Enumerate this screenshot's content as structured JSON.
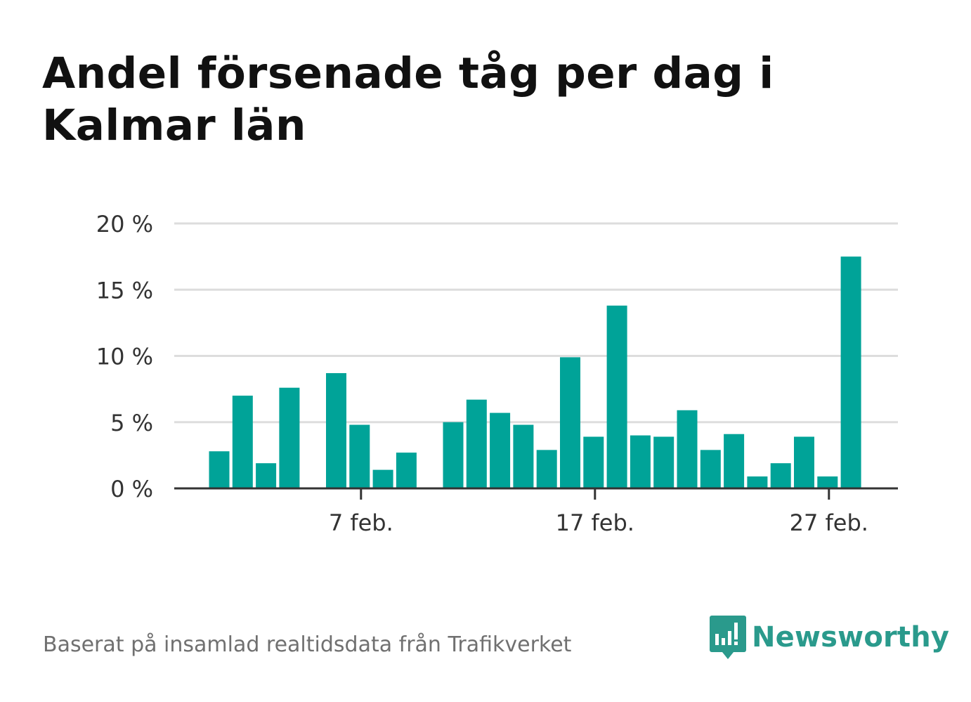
{
  "header": {
    "title": "Andel försenade tåg per dag i Kalmar län"
  },
  "footer": {
    "source": "Baserat på insamlad realtidsdata från Trafikverket",
    "brand": "Newsworthy",
    "brand_icon": "newsworthy-logo-icon"
  },
  "colors": {
    "bar": "#00a398",
    "grid": "#dddddd",
    "axis": "#333333",
    "brand": "#2a9a8c"
  },
  "chart_data": {
    "type": "bar",
    "title": "Andel försenade tåg per dag i Kalmar län",
    "xlabel": "",
    "ylabel": "",
    "ylim": [
      0,
      20
    ],
    "yticks": [
      0,
      5,
      10,
      15,
      20
    ],
    "ytick_labels": [
      "0 %",
      "5 %",
      "10 %",
      "15 %",
      "20 %"
    ],
    "xtick_labels": [
      {
        "day": 7,
        "label": "7 feb."
      },
      {
        "day": 17,
        "label": "17 feb."
      },
      {
        "day": 27,
        "label": "27 feb."
      }
    ],
    "grid": true,
    "days": [
      1,
      2,
      3,
      4,
      5,
      6,
      7,
      8,
      9,
      10,
      11,
      12,
      13,
      14,
      15,
      16,
      17,
      18,
      19,
      20,
      21,
      22,
      23,
      24,
      25,
      26,
      27,
      28
    ],
    "values": [
      2.8,
      7.0,
      1.9,
      7.6,
      null,
      8.7,
      4.8,
      1.4,
      2.7,
      null,
      5.0,
      6.7,
      5.7,
      4.8,
      2.9,
      9.9,
      3.9,
      13.8,
      4.0,
      3.9,
      5.9,
      2.9,
      4.1,
      0.9,
      1.9,
      3.9,
      0.9,
      17.5
    ]
  }
}
